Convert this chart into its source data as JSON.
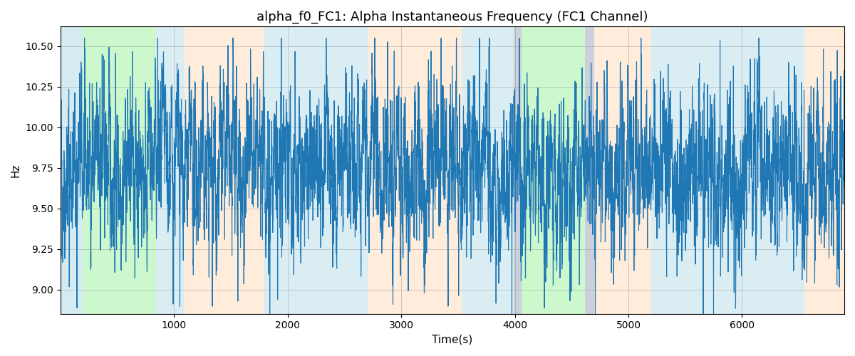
{
  "title": "alpha_f0_FC1: Alpha Instantaneous Frequency (FC1 Channel)",
  "xlabel": "Time(s)",
  "ylabel": "Hz",
  "xlim": [
    0,
    6900
  ],
  "ylim": [
    8.85,
    10.62
  ],
  "yticks": [
    9.0,
    9.25,
    9.5,
    9.75,
    10.0,
    10.25,
    10.5
  ],
  "xticks": [
    1000,
    2000,
    3000,
    4000,
    5000,
    6000
  ],
  "line_color": "#1f77b4",
  "line_width": 0.8,
  "regions": [
    {
      "xmin": 0,
      "xmax": 195,
      "color": "#add8e6",
      "alpha": 0.5
    },
    {
      "xmin": 195,
      "xmax": 840,
      "color": "#90ee90",
      "alpha": 0.45
    },
    {
      "xmin": 840,
      "xmax": 1090,
      "color": "#add8e6",
      "alpha": 0.45
    },
    {
      "xmin": 1090,
      "xmax": 1790,
      "color": "#ffdab9",
      "alpha": 0.5
    },
    {
      "xmin": 1790,
      "xmax": 2560,
      "color": "#add8e6",
      "alpha": 0.45
    },
    {
      "xmin": 2560,
      "xmax": 2710,
      "color": "#add8e6",
      "alpha": 0.45
    },
    {
      "xmin": 2710,
      "xmax": 3530,
      "color": "#ffdab9",
      "alpha": 0.5
    },
    {
      "xmin": 3530,
      "xmax": 3990,
      "color": "#add8e6",
      "alpha": 0.45
    },
    {
      "xmin": 3990,
      "xmax": 4060,
      "color": "#b0b8c8",
      "alpha": 0.65
    },
    {
      "xmin": 4060,
      "xmax": 4620,
      "color": "#90ee90",
      "alpha": 0.45
    },
    {
      "xmin": 4620,
      "xmax": 4700,
      "color": "#b0b8c8",
      "alpha": 0.65
    },
    {
      "xmin": 4700,
      "xmax": 5200,
      "color": "#ffdab9",
      "alpha": 0.5
    },
    {
      "xmin": 5200,
      "xmax": 6180,
      "color": "#add8e6",
      "alpha": 0.45
    },
    {
      "xmin": 6180,
      "xmax": 6550,
      "color": "#add8e6",
      "alpha": 0.45
    },
    {
      "xmin": 6550,
      "xmax": 6900,
      "color": "#ffdab9",
      "alpha": 0.5
    }
  ],
  "freq_mean": 9.75,
  "noise_std": 0.18,
  "spike_amplitude": 0.45,
  "n_spikes": 55,
  "seed": 42,
  "title_fontsize": 13,
  "label_fontsize": 11
}
